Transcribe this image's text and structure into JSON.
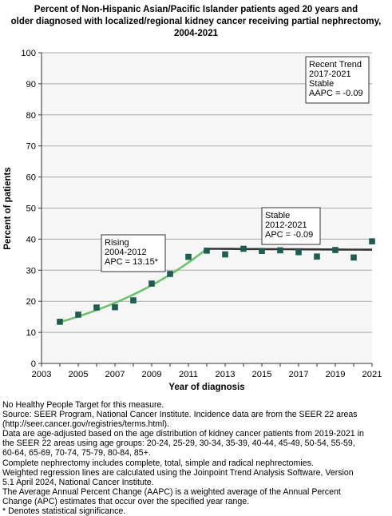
{
  "title_lines": [
    "Percent of Non-Hispanic Asian/Pacific Islander patients aged 20 years and",
    "older diagnosed with localized/regional kidney cancer receiving partial nephrectomy,",
    "2004-2021"
  ],
  "chart_data": {
    "type": "scatter",
    "xlabel": "Year of diagnosis",
    "ylabel": "Percent of patients",
    "xlim": [
      2003,
      2021
    ],
    "ylim": [
      0,
      100
    ],
    "x_ticks": [
      "2003",
      "2005",
      "2007",
      "2009",
      "2011",
      "2013",
      "2015",
      "2017",
      "2019",
      "2021"
    ],
    "y_ticks": [
      "0",
      "10",
      "20",
      "30",
      "40",
      "50",
      "60",
      "70",
      "80",
      "90",
      "100"
    ],
    "grid": "horizontal",
    "series": [
      {
        "x": [
          2004,
          2005,
          2006,
          2007,
          2008,
          2009,
          2010,
          2011,
          2012,
          2013,
          2014,
          2015,
          2016,
          2017,
          2018,
          2019,
          2020,
          2021
        ],
        "y": [
          13.4,
          15.7,
          18.0,
          18.1,
          20.3,
          25.7,
          28.8,
          34.3,
          36.3,
          35.1,
          36.9,
          36.2,
          36.4,
          35.8,
          34.4,
          36.5,
          34.1,
          39.3
        ]
      }
    ],
    "trends": [
      {
        "x_start": 2004,
        "x_end": 2012,
        "apc": 13.15,
        "y_start": 13.3,
        "y_end": 36.9,
        "color": "#6cc36c"
      },
      {
        "x_start": 2012,
        "x_end": 2021,
        "apc": -0.09,
        "y_start": 36.9,
        "y_end": 36.6,
        "color": "#333333"
      }
    ],
    "marker_color": "#1e5c50",
    "annotations": [
      {
        "lines": [
          "Rising",
          "2004-2012",
          "APC = 13.15*"
        ]
      },
      {
        "lines": [
          "Stable",
          "2012-2021",
          "APC = -0.09"
        ]
      },
      {
        "lines": [
          "Recent Trend",
          "2017-2021",
          "Stable",
          "AAPC = -0.09"
        ]
      }
    ]
  },
  "notes": [
    "No Healthy People Target for this measure.",
    "Source: SEER Program, National Cancer Institute. Incidence data are from the SEER 22 areas",
    "(http://seer.cancer.gov/registries/terms.html).",
    "Data are age-adjusted based on the age distribution of kidney cancer patients from 2019-2021 in",
    "the SEER 22 areas using age groups: 20-24, 25-29, 30-34, 35-39, 40-44, 45-49, 50-54, 55-59,",
    "60-64, 65-69, 70-74, 75-79, 80-84, 85+.",
    "Complete nephrectomy includes complete, total, simple and radical nephrectomies.",
    "Weighted regression lines are calculated using the Joinpoint Trend Analysis Software, Version",
    "5.1 April 2024, National Cancer Institute.",
    "The Average Annual Percent Change (AAPC) is a weighted average of the Annual Percent",
    "Change (APC) estimates that occur over the specified year range.",
    "* Denotes statistical significance."
  ]
}
